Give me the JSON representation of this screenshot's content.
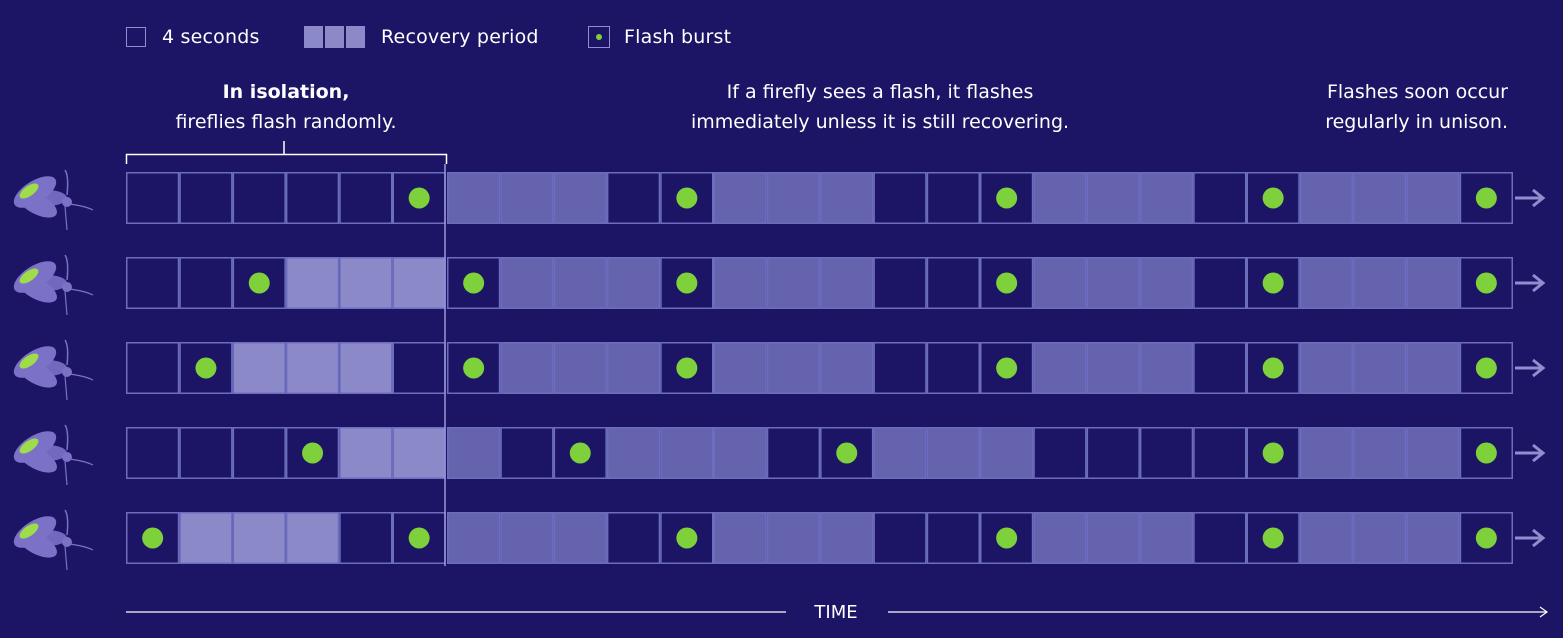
{
  "legend": {
    "seconds_label": "4 seconds",
    "recovery_label": "Recovery period",
    "flash_label": "Flash burst"
  },
  "annotations": {
    "isolation_bold": "In isolation,",
    "isolation_text": "fireflies flash randomly.",
    "sees_line1": "If a firefly sees a flash, it flashes",
    "sees_line2": "immediately unless it is still recovering.",
    "unison_line1": "Flashes soon occur",
    "unison_line2": "regularly in unison."
  },
  "axis": {
    "label": "TIME"
  },
  "colors": {
    "background": "#1c1464",
    "cell_border": "#6d6dc0",
    "flash": "#7fd13b",
    "recovery_isolation": "#8b89c8",
    "recovery_sync": "#6563ae",
    "firefly_body": "#7b72c8",
    "firefly_light": "#9fdc4a",
    "arrow": "#8f8fd0"
  },
  "icons": {
    "firefly": "firefly-icon",
    "arrow": "arrow-right-icon"
  },
  "timeline": {
    "isolation_cells": 6,
    "synchronized_cells": 20,
    "rows": [
      {
        "isolation": [
          "empty",
          "empty",
          "empty",
          "empty",
          "empty",
          "flash"
        ],
        "synchronized": [
          "recovery",
          "recovery",
          "recovery",
          "empty",
          "flash",
          "recovery",
          "recovery",
          "recovery",
          "empty",
          "empty",
          "flash",
          "recovery",
          "recovery",
          "recovery",
          "empty",
          "flash",
          "recovery",
          "recovery",
          "recovery",
          "flash"
        ]
      },
      {
        "isolation": [
          "empty",
          "empty",
          "flash",
          "recovery",
          "recovery",
          "recovery"
        ],
        "synchronized": [
          "flash",
          "recovery",
          "recovery",
          "recovery",
          "flash",
          "recovery",
          "recovery",
          "recovery",
          "empty",
          "empty",
          "flash",
          "recovery",
          "recovery",
          "recovery",
          "empty",
          "flash",
          "recovery",
          "recovery",
          "recovery",
          "flash"
        ]
      },
      {
        "isolation": [
          "empty",
          "flash",
          "recovery",
          "recovery",
          "recovery",
          "empty"
        ],
        "synchronized": [
          "flash",
          "recovery",
          "recovery",
          "recovery",
          "flash",
          "recovery",
          "recovery",
          "recovery",
          "empty",
          "empty",
          "flash",
          "recovery",
          "recovery",
          "recovery",
          "empty",
          "flash",
          "recovery",
          "recovery",
          "recovery",
          "flash"
        ]
      },
      {
        "isolation": [
          "empty",
          "empty",
          "empty",
          "flash",
          "recovery",
          "recovery"
        ],
        "synchronized": [
          "recovery",
          "empty",
          "flash",
          "recovery",
          "recovery",
          "recovery",
          "empty",
          "flash",
          "recovery",
          "recovery",
          "recovery",
          "empty",
          "empty",
          "empty",
          "empty",
          "flash",
          "recovery",
          "recovery",
          "recovery",
          "flash"
        ]
      },
      {
        "isolation": [
          "flash",
          "recovery",
          "recovery",
          "recovery",
          "empty",
          "flash"
        ],
        "synchronized": [
          "recovery",
          "recovery",
          "recovery",
          "empty",
          "flash",
          "recovery",
          "recovery",
          "recovery",
          "empty",
          "empty",
          "flash",
          "recovery",
          "recovery",
          "recovery",
          "empty",
          "flash",
          "recovery",
          "recovery",
          "recovery",
          "flash"
        ]
      }
    ]
  }
}
